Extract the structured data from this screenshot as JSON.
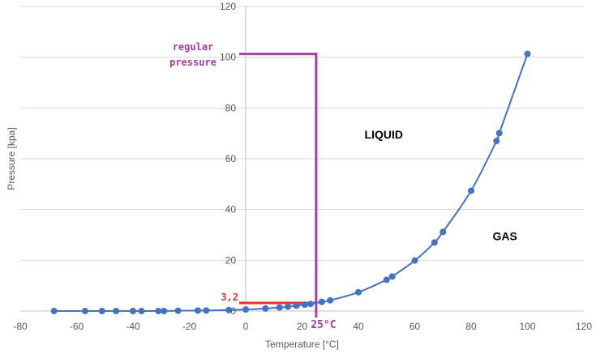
{
  "chart_data": {
    "type": "scatter",
    "xlabel": "Temperature [°C]",
    "ylabel": "Pressure [kpa]",
    "xlim": [
      -80,
      120
    ],
    "ylim": [
      0,
      120
    ],
    "x_ticks": [
      -80,
      -60,
      -40,
      -20,
      0,
      20,
      40,
      60,
      80,
      100,
      120
    ],
    "y_ticks": [
      0,
      20,
      40,
      60,
      80,
      100,
      120
    ],
    "grid": "horizontal",
    "series": [
      {
        "color": "#4472c4",
        "points": [
          {
            "x": -68,
            "y": 0.0
          },
          {
            "x": -57,
            "y": 0.0
          },
          {
            "x": -51,
            "y": 0.0
          },
          {
            "x": -46,
            "y": 0.0
          },
          {
            "x": -40,
            "y": 0.0
          },
          {
            "x": -37,
            "y": 0.0
          },
          {
            "x": -31,
            "y": 0.0
          },
          {
            "x": -29,
            "y": 0.0
          },
          {
            "x": -24,
            "y": 0.1
          },
          {
            "x": -17,
            "y": 0.2
          },
          {
            "x": -14,
            "y": 0.2
          },
          {
            "x": -6,
            "y": 0.4
          },
          {
            "x": 0,
            "y": 0.6
          },
          {
            "x": 7,
            "y": 1.0
          },
          {
            "x": 12,
            "y": 1.4
          },
          {
            "x": 15,
            "y": 1.7
          },
          {
            "x": 18,
            "y": 2.1
          },
          {
            "x": 21,
            "y": 2.5
          },
          {
            "x": 23,
            "y": 2.8
          },
          {
            "x": 27,
            "y": 3.6
          },
          {
            "x": 30,
            "y": 4.2
          },
          {
            "x": 40,
            "y": 7.4
          },
          {
            "x": 50,
            "y": 12.3
          },
          {
            "x": 52,
            "y": 13.6
          },
          {
            "x": 60,
            "y": 19.9
          },
          {
            "x": 67,
            "y": 27.0
          },
          {
            "x": 70,
            "y": 31.2
          },
          {
            "x": 80,
            "y": 47.4
          },
          {
            "x": 89,
            "y": 67.0
          },
          {
            "x": 90,
            "y": 70.1
          },
          {
            "x": 100,
            "y": 101.3
          }
        ]
      }
    ],
    "regions": [
      {
        "label": "LIQUID",
        "x": 49,
        "y": 68
      },
      {
        "label": "GAS",
        "x": 92,
        "y": 28
      }
    ],
    "annotations": {
      "regular_pressure": {
        "line1": "regular",
        "line2": "pressure",
        "y": 101.3,
        "color": "#a040a0"
      },
      "temperature_marker": {
        "label": "25°C",
        "x": 25,
        "color": "#a040a0"
      },
      "vapor_pressure_marker": {
        "label": "3,2",
        "y": 3.2,
        "color": "#e8312b"
      }
    },
    "colors": {
      "grid": "#d9d9d9",
      "axis": "#bfbfbf",
      "series": "#4472c4"
    }
  }
}
